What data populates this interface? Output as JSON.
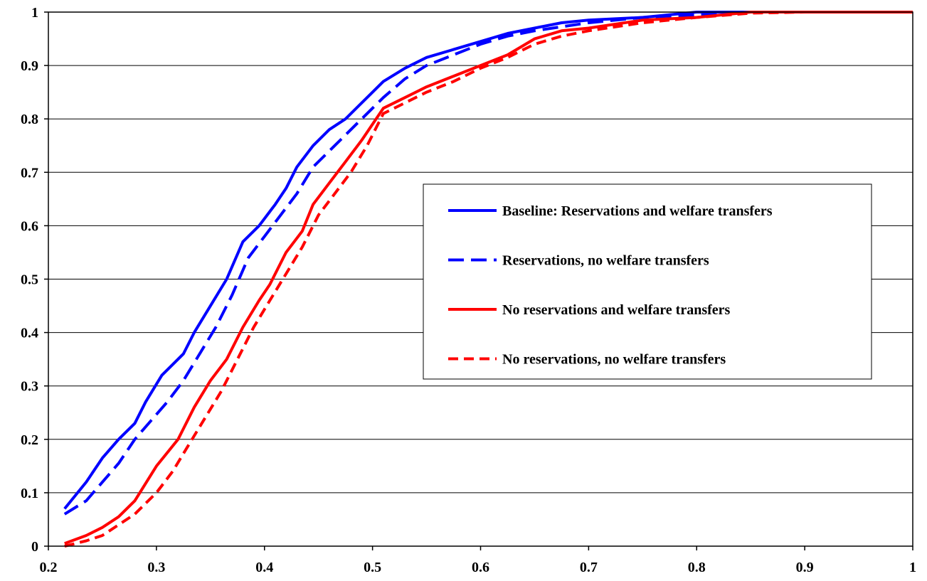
{
  "chart_data": {
    "type": "line",
    "title": "",
    "xlabel": "",
    "ylabel": "",
    "xlim": [
      0.2,
      1
    ],
    "ylim": [
      0,
      1
    ],
    "xticks": [
      "0.2",
      "0.3",
      "0.4",
      "0.5",
      "0.6",
      "0.7",
      "0.8",
      "0.9",
      "1"
    ],
    "yticks": [
      "0",
      "0.1",
      "0.2",
      "0.3",
      "0.4",
      "0.5",
      "0.6",
      "0.7",
      "0.8",
      "0.9",
      "1"
    ],
    "grid": "horizontal",
    "legend_placement": "center-right",
    "series": [
      {
        "name": "Baseline: Reservations and welfare transfers",
        "color": "#0000ff",
        "style": "solid",
        "points": [
          [
            0.215,
            0.07
          ],
          [
            0.235,
            0.12
          ],
          [
            0.25,
            0.165
          ],
          [
            0.265,
            0.2
          ],
          [
            0.28,
            0.23
          ],
          [
            0.29,
            0.27
          ],
          [
            0.305,
            0.32
          ],
          [
            0.325,
            0.36
          ],
          [
            0.335,
            0.4
          ],
          [
            0.35,
            0.45
          ],
          [
            0.365,
            0.5
          ],
          [
            0.38,
            0.57
          ],
          [
            0.395,
            0.6
          ],
          [
            0.41,
            0.64
          ],
          [
            0.42,
            0.67
          ],
          [
            0.43,
            0.71
          ],
          [
            0.445,
            0.75
          ],
          [
            0.46,
            0.78
          ],
          [
            0.475,
            0.8
          ],
          [
            0.49,
            0.83
          ],
          [
            0.51,
            0.87
          ],
          [
            0.53,
            0.895
          ],
          [
            0.55,
            0.915
          ],
          [
            0.575,
            0.93
          ],
          [
            0.6,
            0.945
          ],
          [
            0.625,
            0.96
          ],
          [
            0.65,
            0.97
          ],
          [
            0.675,
            0.98
          ],
          [
            0.7,
            0.985
          ],
          [
            0.75,
            0.99
          ],
          [
            0.8,
            1.0
          ],
          [
            0.85,
            1.0
          ],
          [
            0.9,
            1.0
          ],
          [
            1.0,
            1.0
          ]
        ]
      },
      {
        "name": "Reservations, no welfare transfers",
        "color": "#0000ff",
        "style": "dashed",
        "points": [
          [
            0.215,
            0.06
          ],
          [
            0.235,
            0.085
          ],
          [
            0.25,
            0.12
          ],
          [
            0.265,
            0.155
          ],
          [
            0.28,
            0.2
          ],
          [
            0.295,
            0.235
          ],
          [
            0.31,
            0.27
          ],
          [
            0.325,
            0.31
          ],
          [
            0.34,
            0.36
          ],
          [
            0.355,
            0.41
          ],
          [
            0.37,
            0.47
          ],
          [
            0.385,
            0.54
          ],
          [
            0.4,
            0.58
          ],
          [
            0.415,
            0.62
          ],
          [
            0.43,
            0.66
          ],
          [
            0.445,
            0.71
          ],
          [
            0.46,
            0.74
          ],
          [
            0.475,
            0.77
          ],
          [
            0.49,
            0.8
          ],
          [
            0.51,
            0.84
          ],
          [
            0.53,
            0.875
          ],
          [
            0.55,
            0.9
          ],
          [
            0.575,
            0.92
          ],
          [
            0.6,
            0.94
          ],
          [
            0.625,
            0.955
          ],
          [
            0.65,
            0.965
          ],
          [
            0.7,
            0.98
          ],
          [
            0.75,
            0.99
          ],
          [
            0.8,
            0.995
          ],
          [
            0.85,
            1.0
          ],
          [
            0.9,
            1.0
          ],
          [
            1.0,
            1.0
          ]
        ]
      },
      {
        "name": "No reservations and welfare transfers",
        "color": "#ff0000",
        "style": "solid",
        "points": [
          [
            0.215,
            0.005
          ],
          [
            0.235,
            0.02
          ],
          [
            0.25,
            0.035
          ],
          [
            0.265,
            0.055
          ],
          [
            0.28,
            0.085
          ],
          [
            0.3,
            0.15
          ],
          [
            0.32,
            0.2
          ],
          [
            0.335,
            0.26
          ],
          [
            0.35,
            0.31
          ],
          [
            0.365,
            0.35
          ],
          [
            0.38,
            0.41
          ],
          [
            0.395,
            0.46
          ],
          [
            0.405,
            0.49
          ],
          [
            0.42,
            0.55
          ],
          [
            0.435,
            0.59
          ],
          [
            0.445,
            0.64
          ],
          [
            0.46,
            0.68
          ],
          [
            0.475,
            0.72
          ],
          [
            0.49,
            0.76
          ],
          [
            0.51,
            0.82
          ],
          [
            0.53,
            0.84
          ],
          [
            0.55,
            0.86
          ],
          [
            0.575,
            0.88
          ],
          [
            0.6,
            0.9
          ],
          [
            0.625,
            0.92
          ],
          [
            0.65,
            0.95
          ],
          [
            0.675,
            0.965
          ],
          [
            0.7,
            0.97
          ],
          [
            0.75,
            0.985
          ],
          [
            0.8,
            0.99
          ],
          [
            0.85,
            1.0
          ],
          [
            0.9,
            1.0
          ],
          [
            1.0,
            1.0
          ]
        ]
      },
      {
        "name": "No reservations, no welfare transfers",
        "color": "#ff0000",
        "style": "dashed",
        "points": [
          [
            0.215,
            0.0
          ],
          [
            0.235,
            0.01
          ],
          [
            0.25,
            0.02
          ],
          [
            0.265,
            0.04
          ],
          [
            0.28,
            0.06
          ],
          [
            0.3,
            0.1
          ],
          [
            0.315,
            0.14
          ],
          [
            0.33,
            0.19
          ],
          [
            0.345,
            0.24
          ],
          [
            0.36,
            0.29
          ],
          [
            0.375,
            0.35
          ],
          [
            0.39,
            0.41
          ],
          [
            0.405,
            0.46
          ],
          [
            0.42,
            0.51
          ],
          [
            0.435,
            0.56
          ],
          [
            0.45,
            0.62
          ],
          [
            0.465,
            0.66
          ],
          [
            0.48,
            0.7
          ],
          [
            0.495,
            0.75
          ],
          [
            0.51,
            0.81
          ],
          [
            0.53,
            0.83
          ],
          [
            0.55,
            0.85
          ],
          [
            0.575,
            0.87
          ],
          [
            0.6,
            0.895
          ],
          [
            0.625,
            0.915
          ],
          [
            0.65,
            0.94
          ],
          [
            0.675,
            0.955
          ],
          [
            0.7,
            0.965
          ],
          [
            0.75,
            0.98
          ],
          [
            0.8,
            0.99
          ],
          [
            0.85,
            0.998
          ],
          [
            0.9,
            1.0
          ],
          [
            1.0,
            1.0
          ]
        ]
      }
    ]
  }
}
